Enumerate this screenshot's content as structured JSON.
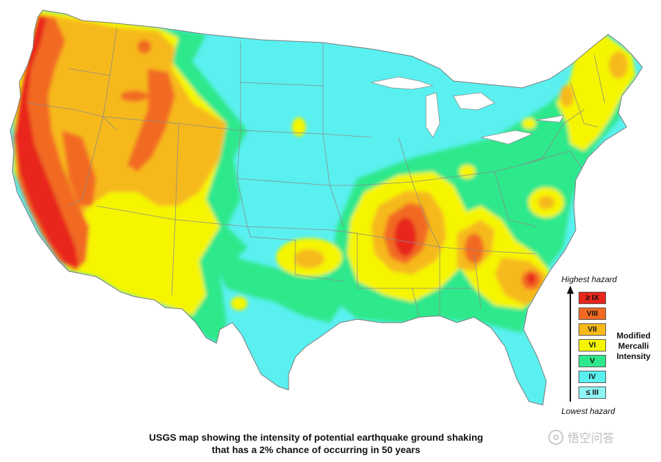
{
  "legend": {
    "top_label": "Highest hazard",
    "bottom_label": "Lowest hazard",
    "title_lines": [
      "Modified",
      "Mercalli",
      "Intensity"
    ],
    "classes": [
      {
        "label": "≥ IX",
        "color": "#e8261c"
      },
      {
        "label": "VIII",
        "color": "#f26b21"
      },
      {
        "label": "VII",
        "color": "#f6b91a"
      },
      {
        "label": "VI",
        "color": "#f5f500"
      },
      {
        "label": "V",
        "color": "#2ee88c"
      },
      {
        "label": "IV",
        "color": "#5af0f0"
      },
      {
        "label": "≤ III",
        "color": "#8ff5f5"
      }
    ]
  },
  "caption": {
    "line1": "USGS map showing the intensity of potential earthquake ground shaking",
    "line2": "that has a 2% chance of occurring in 50 years"
  },
  "watermark": {
    "text": "悟空问答"
  },
  "colors": {
    "border_line": "#8a8a8a",
    "water": "#ffffff"
  }
}
